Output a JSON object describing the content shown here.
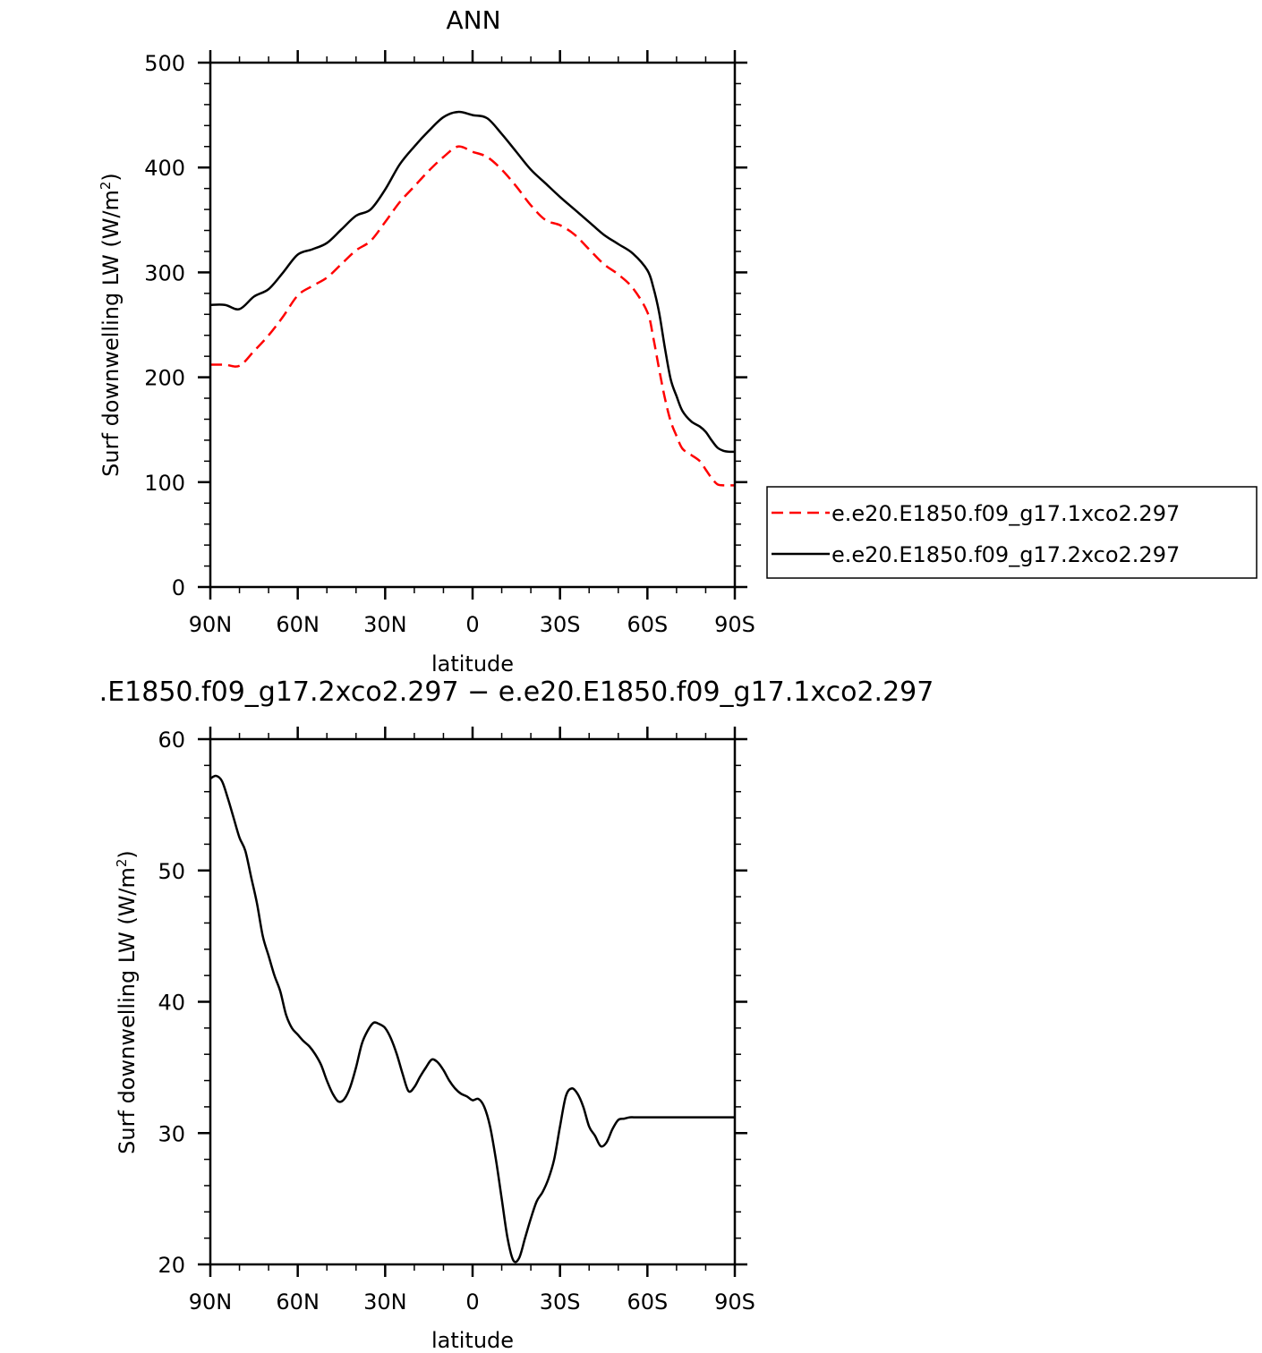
{
  "chart_data": [
    {
      "type": "line",
      "title": "ANN",
      "xlabel": "latitude",
      "ylabel": "Surf downwelling LW (W/m²)",
      "ylabel_main": "Surf downwelling LW (W/m",
      "ylabel_sup": "2",
      "ylabel_close": ")",
      "xlim": [
        90,
        -90
      ],
      "ylim": [
        0,
        500
      ],
      "x_ticks": [
        {
          "value": 90,
          "label": "90N"
        },
        {
          "value": 60,
          "label": "60N"
        },
        {
          "value": 30,
          "label": "30N"
        },
        {
          "value": 0,
          "label": "0"
        },
        {
          "value": -30,
          "label": "30S"
        },
        {
          "value": -60,
          "label": "60S"
        },
        {
          "value": -90,
          "label": "90S"
        }
      ],
      "y_ticks": [
        {
          "value": 0,
          "label": "0"
        },
        {
          "value": 100,
          "label": "100"
        },
        {
          "value": 200,
          "label": "200"
        },
        {
          "value": 300,
          "label": "300"
        },
        {
          "value": 400,
          "label": "400"
        },
        {
          "value": 500,
          "label": "500"
        }
      ],
      "legend_position": "right",
      "series": [
        {
          "name": "e.e20.E1850.f09_g17.1xco2.297",
          "color": "#ff0000",
          "dash": "dashed",
          "x": [
            90,
            85,
            80,
            75,
            70,
            65,
            60,
            55,
            50,
            45,
            40,
            35,
            30,
            25,
            20,
            15,
            10,
            5,
            0,
            -5,
            -10,
            -15,
            -20,
            -25,
            -30,
            -35,
            -40,
            -45,
            -50,
            -55,
            -60,
            -62,
            -64,
            -66,
            -68,
            -70,
            -72,
            -75,
            -78,
            -80,
            -82,
            -84,
            -86,
            -88,
            -90
          ],
          "y": [
            212,
            212,
            211,
            225,
            240,
            258,
            278,
            287,
            295,
            308,
            321,
            330,
            348,
            367,
            382,
            397,
            410,
            420,
            415,
            410,
            398,
            382,
            364,
            350,
            345,
            336,
            322,
            308,
            298,
            285,
            262,
            238,
            208,
            180,
            158,
            144,
            132,
            126,
            120,
            112,
            104,
            98,
            97,
            97,
            97
          ]
        },
        {
          "name": "e.e20.E1850.f09_g17.2xco2.297",
          "color": "#000000",
          "dash": "solid",
          "x": [
            90,
            85,
            80,
            75,
            70,
            65,
            60,
            55,
            50,
            45,
            40,
            35,
            30,
            25,
            20,
            15,
            10,
            5,
            0,
            -5,
            -10,
            -15,
            -20,
            -25,
            -30,
            -35,
            -40,
            -45,
            -50,
            -55,
            -60,
            -62,
            -64,
            -66,
            -68,
            -70,
            -72,
            -75,
            -78,
            -80,
            -82,
            -84,
            -86,
            -88,
            -90
          ],
          "y": [
            269,
            269,
            265,
            277,
            284,
            300,
            317,
            322,
            328,
            341,
            354,
            360,
            379,
            403,
            420,
            435,
            448,
            453,
            450,
            447,
            432,
            415,
            398,
            385,
            372,
            360,
            348,
            336,
            327,
            318,
            302,
            286,
            262,
            228,
            198,
            182,
            168,
            158,
            153,
            148,
            140,
            133,
            130,
            129,
            129
          ]
        }
      ]
    },
    {
      "type": "line",
      "title": ".E1850.f09_g17.2xco2.297 − e.e20.E1850.f09_g17.1xco2.297",
      "xlabel": "latitude",
      "ylabel": "Surf downwelling LW (W/m²)",
      "ylabel_main": "Surf downwelling LW (W/m",
      "ylabel_sup": "2",
      "ylabel_close": ")",
      "xlim": [
        90,
        -90
      ],
      "ylim": [
        20,
        60
      ],
      "x_ticks": [
        {
          "value": 90,
          "label": "90N"
        },
        {
          "value": 60,
          "label": "60N"
        },
        {
          "value": 30,
          "label": "30N"
        },
        {
          "value": 0,
          "label": "0"
        },
        {
          "value": -30,
          "label": "30S"
        },
        {
          "value": -60,
          "label": "60S"
        },
        {
          "value": -90,
          "label": "90S"
        }
      ],
      "y_ticks": [
        {
          "value": 20,
          "label": "20"
        },
        {
          "value": 30,
          "label": "30"
        },
        {
          "value": 40,
          "label": "40"
        },
        {
          "value": 50,
          "label": "50"
        },
        {
          "value": 60,
          "label": "60"
        }
      ],
      "series": [
        {
          "color": "#000000",
          "dash": "solid",
          "x": [
            90,
            88,
            86,
            84,
            82,
            80,
            78,
            76,
            74,
            72,
            70,
            68,
            66,
            64,
            62,
            60,
            58,
            56,
            54,
            52,
            50,
            48,
            46,
            44,
            42,
            40,
            38,
            36,
            34,
            32,
            30,
            28,
            26,
            24,
            22,
            20,
            18,
            16,
            14,
            12,
            10,
            8,
            6,
            4,
            2,
            0,
            -2,
            -4,
            -6,
            -8,
            -10,
            -12,
            -14,
            -16,
            -18,
            -20,
            -22,
            -24,
            -26,
            -28,
            -30,
            -32,
            -34,
            -36,
            -38,
            -40,
            -42,
            -44,
            -46,
            -48,
            -50,
            -52,
            -54,
            -56,
            -58,
            -60,
            -62,
            -64,
            -66,
            -68,
            -70,
            -72,
            -74,
            -76,
            -78,
            -80,
            -82,
            -84,
            -86,
            -88,
            -90
          ],
          "y": [
            57.0,
            57.2,
            56.8,
            55.5,
            54.0,
            52.5,
            51.5,
            49.5,
            47.5,
            45.0,
            43.5,
            42.0,
            40.8,
            39.0,
            38.0,
            37.5,
            37.0,
            36.6,
            36.0,
            35.2,
            34.0,
            33.0,
            32.4,
            32.6,
            33.5,
            35.0,
            36.8,
            37.8,
            38.4,
            38.3,
            38.0,
            37.2,
            36.0,
            34.5,
            33.2,
            33.5,
            34.3,
            35.0,
            35.6,
            35.4,
            34.8,
            34.0,
            33.4,
            33.0,
            32.8,
            32.5,
            32.6,
            32.0,
            30.5,
            28.0,
            25.0,
            22.0,
            20.3,
            20.5,
            22.0,
            23.5,
            24.8,
            25.5,
            26.5,
            28.0,
            30.5,
            32.8,
            33.4,
            33.0,
            32.0,
            30.5,
            29.8,
            29.0,
            29.3,
            30.3,
            31.0,
            31.1,
            31.2,
            31.2,
            31.2,
            31.2,
            31.2,
            31.2,
            31.2,
            31.2,
            31.2,
            31.2,
            31.2,
            31.2,
            31.2,
            31.2,
            31.2,
            31.2,
            31.2,
            31.2,
            31.2
          ]
        }
      ]
    }
  ]
}
